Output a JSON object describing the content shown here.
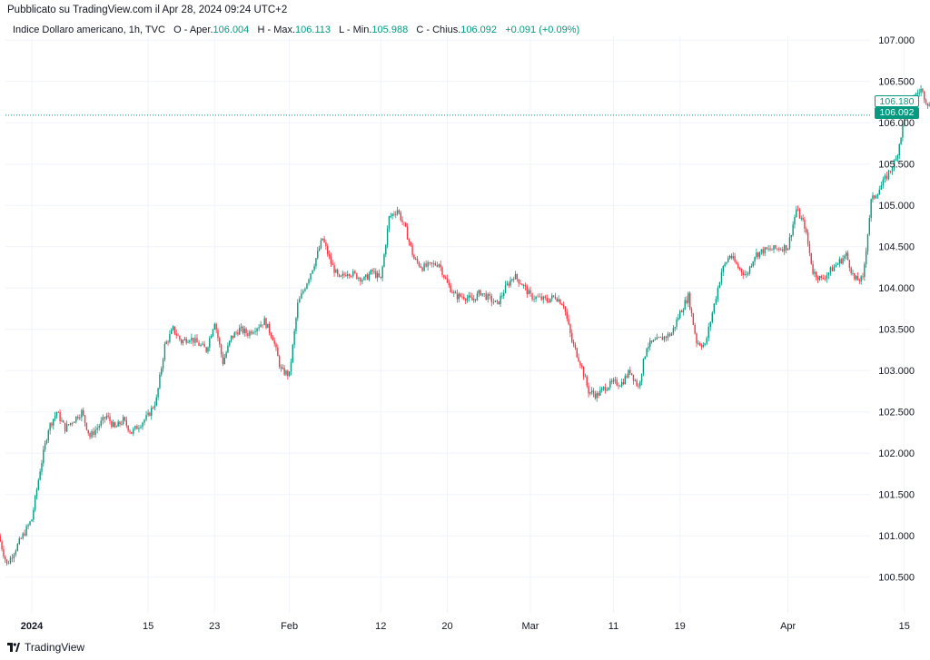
{
  "header": {
    "published": "Pubblicato su TradingView.com il Apr 28, 2024 09:24 UTC+2"
  },
  "legend": {
    "symbol": "Indice Dollaro americano, 1h, TVC",
    "open_label": "O - Aper.",
    "open": "106.004",
    "high_label": "H - Max.",
    "high": "106.113",
    "low_label": "L - Min.",
    "low": "105.988",
    "close_label": "C - Chius.",
    "close": "106.092",
    "change": "+0.091 (+0.09%)"
  },
  "price_labels": {
    "high_marker": "106.180",
    "last": "106.092"
  },
  "footer": {
    "brand": "TradingView"
  },
  "colors": {
    "up": "#089981",
    "down": "#f23645",
    "grid": "#f0f3fa",
    "axis_text": "#131722"
  },
  "chart_data": {
    "type": "line",
    "title": "Indice Dollaro americano, 1h, TVC",
    "xlabel": "",
    "ylabel": "",
    "ylim": [
      100.2,
      107.2
    ],
    "y_ticks": [
      "107.000",
      "106.500",
      "106.000",
      "105.500",
      "105.000",
      "104.500",
      "104.000",
      "103.500",
      "103.000",
      "102.500",
      "102.000",
      "101.500",
      "101.000",
      "100.500"
    ],
    "x_ticks": [
      "2024",
      "15",
      "23",
      "Feb",
      "12",
      "20",
      "Mar",
      "11",
      "19",
      "Apr",
      "15"
    ],
    "x_tick_dates": [
      "2024-01-01",
      "2024-01-15",
      "2024-01-23",
      "2024-02-01",
      "2024-02-12",
      "2024-02-20",
      "2024-03-01",
      "2024-03-11",
      "2024-03-19",
      "2024-04-01",
      "2024-04-15"
    ],
    "last_price": 106.092,
    "grid": true,
    "series": [
      {
        "values_approx": [
          [
            "2023-12-28",
            101.0
          ],
          [
            "2023-12-29",
            100.65
          ],
          [
            "2024-01-01",
            101.2
          ],
          [
            "2024-01-02",
            101.8
          ],
          [
            "2024-01-03",
            102.3
          ],
          [
            "2024-01-04",
            102.5
          ],
          [
            "2024-01-05",
            102.3
          ],
          [
            "2024-01-07",
            102.5
          ],
          [
            "2024-01-08",
            102.2
          ],
          [
            "2024-01-10",
            102.45
          ],
          [
            "2024-01-11",
            102.3
          ],
          [
            "2024-01-12",
            102.4
          ],
          [
            "2024-01-13",
            102.25
          ],
          [
            "2024-01-15",
            102.45
          ],
          [
            "2024-01-16",
            102.65
          ],
          [
            "2024-01-17",
            103.3
          ],
          [
            "2024-01-18",
            103.5
          ],
          [
            "2024-01-19",
            103.35
          ],
          [
            "2024-01-20",
            103.4
          ],
          [
            "2024-01-22",
            103.25
          ],
          [
            "2024-01-23",
            103.6
          ],
          [
            "2024-01-24",
            103.1
          ],
          [
            "2024-01-25",
            103.4
          ],
          [
            "2024-01-26",
            103.5
          ],
          [
            "2024-01-27",
            103.45
          ],
          [
            "2024-01-29",
            103.6
          ],
          [
            "2024-01-30",
            103.4
          ],
          [
            "2024-01-31",
            103.0
          ],
          [
            "2024-02-01",
            102.95
          ],
          [
            "2024-02-02",
            103.8
          ],
          [
            "2024-02-04",
            104.3
          ],
          [
            "2024-02-05",
            104.6
          ],
          [
            "2024-02-06",
            104.3
          ],
          [
            "2024-02-07",
            104.1
          ],
          [
            "2024-02-08",
            104.2
          ],
          [
            "2024-02-10",
            104.1
          ],
          [
            "2024-02-11",
            104.2
          ],
          [
            "2024-02-12",
            104.1
          ],
          [
            "2024-02-13",
            104.85
          ],
          [
            "2024-02-14",
            104.95
          ],
          [
            "2024-02-15",
            104.7
          ],
          [
            "2024-02-16",
            104.35
          ],
          [
            "2024-02-17",
            104.25
          ],
          [
            "2024-02-19",
            104.3
          ],
          [
            "2024-02-20",
            104.05
          ],
          [
            "2024-02-21",
            103.9
          ],
          [
            "2024-02-22",
            103.9
          ],
          [
            "2024-02-23",
            103.85
          ],
          [
            "2024-02-24",
            103.95
          ],
          [
            "2024-02-26",
            103.8
          ],
          [
            "2024-02-27",
            104.0
          ],
          [
            "2024-02-28",
            104.15
          ],
          [
            "2024-02-29",
            104.05
          ],
          [
            "2024-03-01",
            103.9
          ],
          [
            "2024-03-03",
            103.85
          ],
          [
            "2024-03-04",
            103.9
          ],
          [
            "2024-03-05",
            103.8
          ],
          [
            "2024-03-06",
            103.35
          ],
          [
            "2024-03-07",
            103.1
          ],
          [
            "2024-03-08",
            102.75
          ],
          [
            "2024-03-09",
            102.7
          ],
          [
            "2024-03-10",
            102.8
          ],
          [
            "2024-03-11",
            102.85
          ],
          [
            "2024-03-12",
            102.85
          ],
          [
            "2024-03-13",
            103.0
          ],
          [
            "2024-03-14",
            102.8
          ],
          [
            "2024-03-15",
            103.3
          ],
          [
            "2024-03-16",
            103.35
          ],
          [
            "2024-03-18",
            103.45
          ],
          [
            "2024-03-19",
            103.7
          ],
          [
            "2024-03-20",
            103.9
          ],
          [
            "2024-03-21",
            103.35
          ],
          [
            "2024-03-22",
            103.3
          ],
          [
            "2024-03-24",
            104.2
          ],
          [
            "2024-03-25",
            104.4
          ],
          [
            "2024-03-26",
            104.25
          ],
          [
            "2024-03-27",
            104.15
          ],
          [
            "2024-03-28",
            104.4
          ],
          [
            "2024-03-29",
            104.45
          ],
          [
            "2024-04-01",
            104.5
          ],
          [
            "2024-04-02",
            104.95
          ],
          [
            "2024-04-03",
            104.75
          ],
          [
            "2024-04-04",
            104.2
          ],
          [
            "2024-04-05",
            104.1
          ],
          [
            "2024-04-07",
            104.3
          ],
          [
            "2024-04-08",
            104.4
          ],
          [
            "2024-04-09",
            104.1
          ],
          [
            "2024-04-10",
            104.1
          ],
          [
            "2024-04-11",
            105.05
          ],
          [
            "2024-04-12",
            105.2
          ],
          [
            "2024-04-14",
            105.55
          ],
          [
            "2024-04-15",
            106.05
          ],
          [
            "2024-04-16",
            106.3
          ],
          [
            "2024-04-17",
            106.4
          ],
          [
            "2024-04-18",
            106.2
          ],
          [
            "2024-04-19",
            106.1
          ],
          [
            "2024-04-21",
            106.05
          ],
          [
            "2024-04-22",
            106.0
          ],
          [
            "2024-04-23",
            106.1
          ],
          [
            "2024-04-24",
            106.3
          ],
          [
            "2024-04-25",
            105.9
          ],
          [
            "2024-04-26",
            106.092
          ]
        ]
      }
    ]
  }
}
